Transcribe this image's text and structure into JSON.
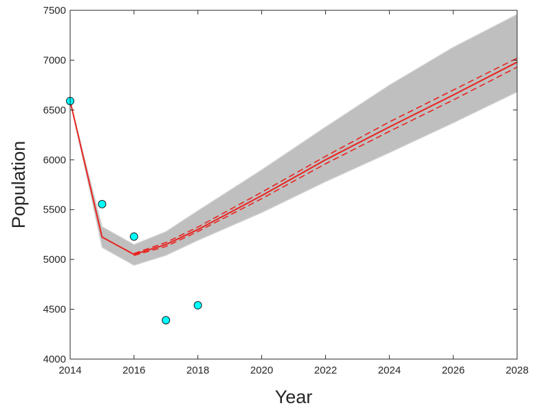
{
  "chart_data": {
    "type": "line",
    "title": "",
    "xlabel": "Year",
    "ylabel": "Population",
    "xlim": [
      2014,
      2028
    ],
    "ylim": [
      4000,
      7500
    ],
    "xticks": [
      "2014",
      "2016",
      "2018",
      "2020",
      "2022",
      "2024",
      "2026",
      "2028"
    ],
    "yticks": [
      "4000",
      "4500",
      "5000",
      "5500",
      "6000",
      "6500",
      "7000",
      "7500"
    ],
    "grid": false,
    "legend": "none",
    "colors": {
      "observed_fill": "#00ffff",
      "median_line": "#e8231f",
      "interval_line": "#e8231f",
      "simulation_band": "#bfbfbf"
    },
    "observed": {
      "x": [
        2014,
        2015,
        2016,
        2017,
        2018
      ],
      "y": [
        6590,
        5555,
        5230,
        4390,
        4540
      ]
    },
    "median": {
      "x": [
        2014,
        2015,
        2016,
        2017,
        2018,
        2020,
        2022,
        2024,
        2026,
        2028
      ],
      "y": [
        6590,
        5225,
        5050,
        5150,
        5300,
        5640,
        6000,
        6330,
        6650,
        6980
      ]
    },
    "interval_upper": {
      "x": [
        2016,
        2017,
        2018,
        2020,
        2022,
        2024,
        2026,
        2028
      ],
      "y": [
        5060,
        5170,
        5325,
        5675,
        6035,
        6380,
        6700,
        7020
      ]
    },
    "interval_lower": {
      "x": [
        2016,
        2017,
        2018,
        2020,
        2022,
        2024,
        2026,
        2028
      ],
      "y": [
        5040,
        5130,
        5280,
        5610,
        5960,
        6285,
        6600,
        6930
      ]
    },
    "simulation_band": {
      "x": [
        2014,
        2015,
        2016,
        2017,
        2018,
        2020,
        2022,
        2024,
        2026,
        2028
      ],
      "upper": [
        6590,
        5330,
        5150,
        5280,
        5490,
        5900,
        6330,
        6750,
        7130,
        7460
      ],
      "lower": [
        6590,
        5120,
        4940,
        5040,
        5190,
        5470,
        5780,
        6070,
        6370,
        6680
      ]
    }
  }
}
